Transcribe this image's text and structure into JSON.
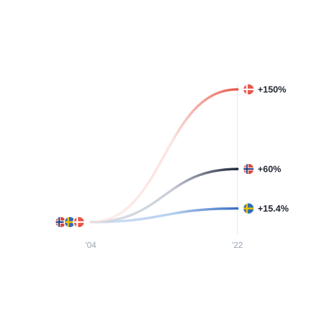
{
  "chart_data": {
    "type": "line",
    "x": [
      "'04",
      "'22"
    ],
    "ylim": [
      0,
      150
    ],
    "grid": false,
    "legend": "none",
    "series": [
      {
        "values": [
          0,
          150
        ],
        "label": "+150%",
        "flag": "denmark-flag-icon",
        "color": "#e8574a",
        "fade_color": "#fbe3df"
      },
      {
        "values": [
          0,
          60
        ],
        "label": "+60%",
        "flag": "norway-flag-icon",
        "color": "#1c2438",
        "fade_color": "#c9ced9"
      },
      {
        "values": [
          0,
          15.4
        ],
        "label": "+15.4%",
        "flag": "sweden-flag-icon",
        "color": "#3a6fc4",
        "fade_color": "#b8d0f0"
      }
    ],
    "flag_colors": {
      "denmark": {
        "field": "#e8574a",
        "cross": "#ffffff"
      },
      "norway": {
        "field": "#d9473d",
        "cross_outer": "#ffffff",
        "cross_inner": "#1f3a78"
      },
      "sweden": {
        "field": "#2f6db3",
        "cross": "#f5c400"
      }
    }
  }
}
